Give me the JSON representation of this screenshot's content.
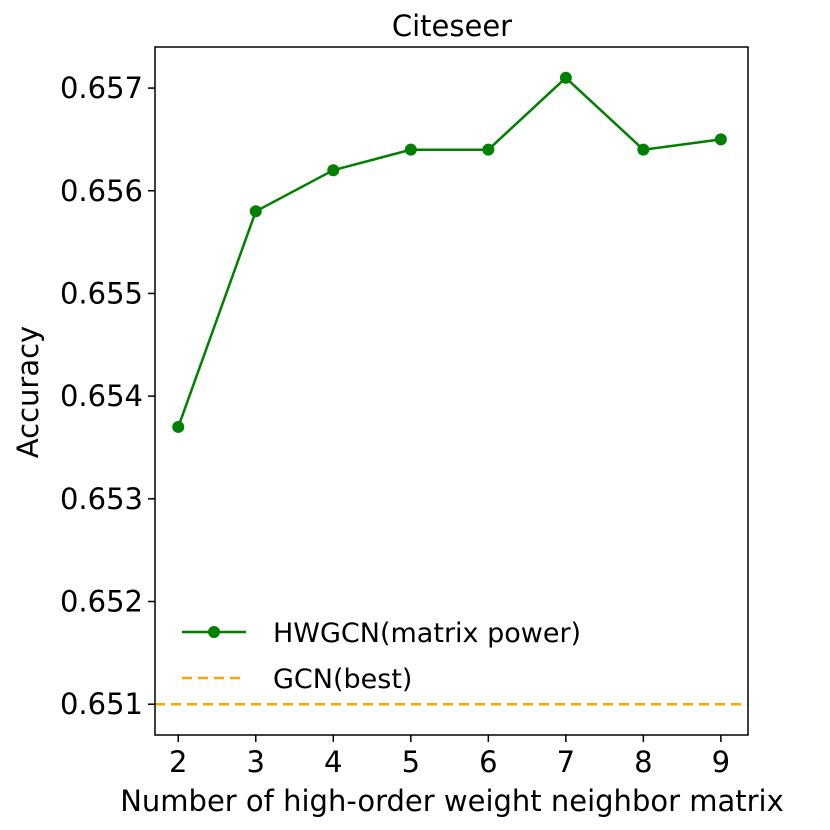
{
  "chart_data": {
    "type": "line",
    "title": "Citeseer",
    "xlabel": "Number of high-order weight neighbor matrix",
    "ylabel": "Accuracy",
    "x": [
      2,
      3,
      4,
      5,
      6,
      7,
      8,
      9
    ],
    "xlim": [
      1.7,
      9.35
    ],
    "ylim": [
      0.6507,
      0.6574
    ],
    "xticks": [
      2,
      3,
      4,
      5,
      6,
      7,
      8,
      9
    ],
    "yticks": [
      0.651,
      0.652,
      0.653,
      0.654,
      0.655,
      0.656,
      0.657
    ],
    "ytick_labels": [
      "0.651",
      "0.652",
      "0.653",
      "0.654",
      "0.655",
      "0.656",
      "0.657"
    ],
    "series": [
      {
        "name": "HWGCN(matrix power)",
        "values": [
          0.6537,
          0.6558,
          0.6562,
          0.6564,
          0.6564,
          0.6571,
          0.6564,
          0.6565
        ],
        "color": "#008000",
        "style": "solid",
        "marker": "circle"
      },
      {
        "name": "GCN(best)",
        "value": 0.651,
        "color": "#FFA500",
        "style": "dashed",
        "kind": "horizontal-line"
      }
    ],
    "legend_position": "lower-left",
    "grid": false
  }
}
